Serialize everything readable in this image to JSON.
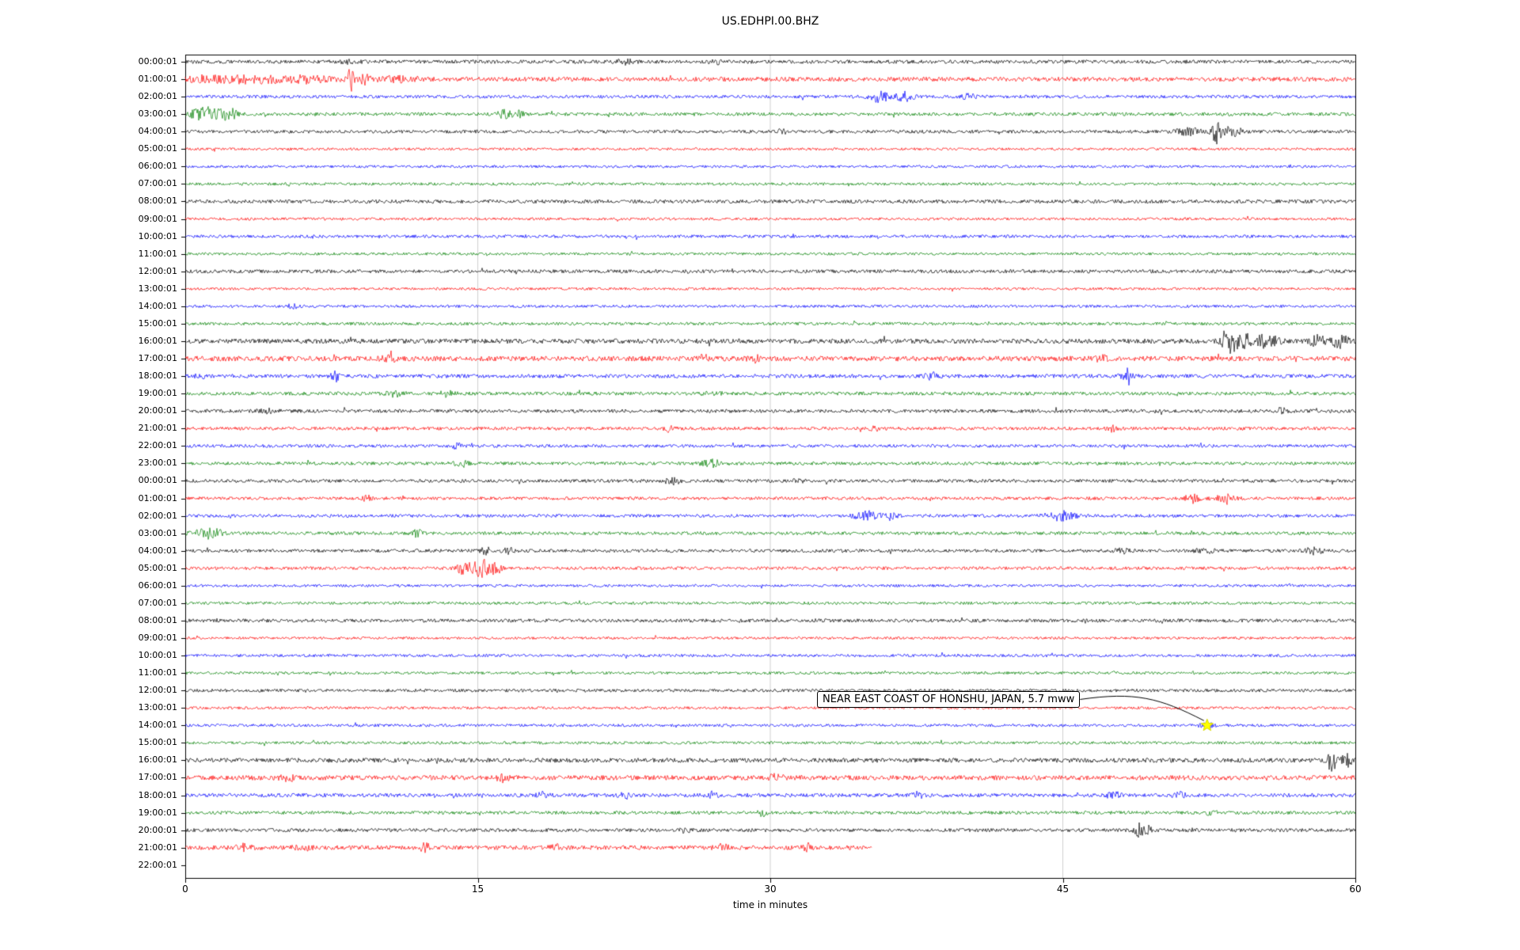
{
  "chart_data": {
    "type": "line",
    "subtype": "seismogram-helicorder-dayplot",
    "title": "US.EDHPI.00.BHZ",
    "xlabel": "time in minutes",
    "xlim": [
      0,
      60
    ],
    "xticks": [
      0,
      15,
      30,
      45,
      60
    ],
    "grid": "vertical gridlines at x ticks",
    "legend": "none",
    "row_interval": "1 hour per row",
    "trace_color_cycle": [
      "#000000",
      "#ff0000",
      "#0000ff",
      "#008000"
    ],
    "annotation": {
      "text": "NEAR EAST COAST OF HONSHU, JAPAN, 5.7 mww",
      "row_index": 38,
      "row_label": "14:00:01",
      "minute": 52.4,
      "marker_symbol": "star",
      "marker_color": "#ffff00"
    },
    "rows": [
      {
        "label": "00:00:01",
        "color": "#000000",
        "amp": 2.3,
        "end": 60,
        "events": [
          {
            "m": 8.3,
            "a": 1.5,
            "w": 0.4
          },
          {
            "m": 22.6,
            "a": 2.5,
            "w": 0.3
          },
          {
            "m": 27.2,
            "a": 2.0,
            "w": 0.3
          }
        ]
      },
      {
        "label": "01:00:01",
        "color": "#ff0000",
        "amp": 2.8,
        "end": 60,
        "events": [
          {
            "m": 1.5,
            "a": 2.5,
            "w": 1.5
          },
          {
            "m": 4.0,
            "a": 3.0,
            "w": 1.2
          },
          {
            "m": 6.5,
            "a": 3.5,
            "w": 0.8
          },
          {
            "m": 8.5,
            "a": 14.0,
            "w": 0.12
          },
          {
            "m": 9.2,
            "a": 6.0,
            "w": 0.2
          },
          {
            "m": 11.0,
            "a": 2.5,
            "w": 0.8
          }
        ]
      },
      {
        "label": "02:00:01",
        "color": "#0000ff",
        "amp": 2.0,
        "end": 60,
        "events": [
          {
            "m": 35.6,
            "a": 7.0,
            "w": 0.35
          },
          {
            "m": 36.9,
            "a": 6.0,
            "w": 0.3
          },
          {
            "m": 40.2,
            "a": 3.0,
            "w": 0.3
          }
        ]
      },
      {
        "label": "03:00:01",
        "color": "#008000",
        "amp": 2.1,
        "end": 60,
        "events": [
          {
            "m": 0.7,
            "a": 7.0,
            "w": 0.3
          },
          {
            "m": 1.4,
            "a": 8.0,
            "w": 0.4
          },
          {
            "m": 2.3,
            "a": 6.0,
            "w": 0.3
          },
          {
            "m": 16.4,
            "a": 5.0,
            "w": 0.25
          },
          {
            "m": 17.1,
            "a": 3.5,
            "w": 0.2
          }
        ]
      },
      {
        "label": "04:00:01",
        "color": "#000000",
        "amp": 2.1,
        "end": 60,
        "events": [
          {
            "m": 30.6,
            "a": 4.0,
            "w": 0.12
          },
          {
            "m": 51.6,
            "a": 4.5,
            "w": 0.5
          },
          {
            "m": 52.9,
            "a": 14.0,
            "w": 0.18
          },
          {
            "m": 53.7,
            "a": 6.0,
            "w": 0.35
          }
        ]
      },
      {
        "label": "05:00:01",
        "color": "#ff0000",
        "amp": 1.7,
        "end": 60,
        "events": []
      },
      {
        "label": "06:00:01",
        "color": "#0000ff",
        "amp": 1.7,
        "end": 60,
        "events": []
      },
      {
        "label": "07:00:01",
        "color": "#008000",
        "amp": 1.8,
        "end": 60,
        "events": []
      },
      {
        "label": "08:00:01",
        "color": "#000000",
        "amp": 2.3,
        "end": 60,
        "events": []
      },
      {
        "label": "09:00:01",
        "color": "#ff0000",
        "amp": 1.7,
        "end": 60,
        "events": []
      },
      {
        "label": "10:00:01",
        "color": "#0000ff",
        "amp": 1.9,
        "end": 60,
        "events": []
      },
      {
        "label": "11:00:01",
        "color": "#008000",
        "amp": 1.7,
        "end": 60,
        "events": []
      },
      {
        "label": "12:00:01",
        "color": "#000000",
        "amp": 2.2,
        "end": 60,
        "events": []
      },
      {
        "label": "13:00:01",
        "color": "#ff0000",
        "amp": 1.7,
        "end": 60,
        "events": []
      },
      {
        "label": "14:00:01",
        "color": "#0000ff",
        "amp": 1.8,
        "end": 60,
        "events": [
          {
            "m": 5.5,
            "a": 2.5,
            "w": 0.2
          }
        ]
      },
      {
        "label": "15:00:01",
        "color": "#008000",
        "amp": 1.9,
        "end": 60,
        "events": []
      },
      {
        "label": "16:00:01",
        "color": "#000000",
        "amp": 3.0,
        "end": 60,
        "events": [
          {
            "m": 53.6,
            "a": 13.0,
            "w": 0.3
          },
          {
            "m": 54.6,
            "a": 8.0,
            "w": 0.5
          },
          {
            "m": 55.6,
            "a": 5.0,
            "w": 0.4
          },
          {
            "m": 58.1,
            "a": 6.0,
            "w": 0.3
          },
          {
            "m": 59.2,
            "a": 7.0,
            "w": 0.3
          }
        ]
      },
      {
        "label": "17:00:01",
        "color": "#ff0000",
        "amp": 3.2,
        "end": 60,
        "events": [
          {
            "m": 10.5,
            "a": 2.5,
            "w": 0.3
          },
          {
            "m": 26.5,
            "a": 5.0,
            "w": 0.2
          },
          {
            "m": 29.2,
            "a": 3.5,
            "w": 0.2
          },
          {
            "m": 47.0,
            "a": 2.5,
            "w": 0.3
          }
        ]
      },
      {
        "label": "18:00:01",
        "color": "#0000ff",
        "amp": 2.4,
        "end": 60,
        "events": [
          {
            "m": 0.8,
            "a": 5.0,
            "w": 0.15
          },
          {
            "m": 7.7,
            "a": 6.0,
            "w": 0.15
          },
          {
            "m": 38.3,
            "a": 3.5,
            "w": 0.25
          },
          {
            "m": 48.3,
            "a": 3.5,
            "w": 0.25
          }
        ]
      },
      {
        "label": "19:00:01",
        "color": "#008000",
        "amp": 2.2,
        "end": 60,
        "events": [
          {
            "m": 10.8,
            "a": 4.0,
            "w": 0.3
          },
          {
            "m": 13.4,
            "a": 3.5,
            "w": 0.25
          },
          {
            "m": 27.0,
            "a": 3.0,
            "w": 0.3
          }
        ]
      },
      {
        "label": "20:00:01",
        "color": "#000000",
        "amp": 2.2,
        "end": 60,
        "events": [
          {
            "m": 4.2,
            "a": 3.0,
            "w": 0.3
          },
          {
            "m": 56.2,
            "a": 3.0,
            "w": 0.3
          }
        ]
      },
      {
        "label": "21:00:01",
        "color": "#ff0000",
        "amp": 2.1,
        "end": 60,
        "events": [
          {
            "m": 24.8,
            "a": 3.5,
            "w": 0.2
          },
          {
            "m": 35.4,
            "a": 3.5,
            "w": 0.2
          },
          {
            "m": 47.6,
            "a": 4.0,
            "w": 0.2
          }
        ]
      },
      {
        "label": "22:00:01",
        "color": "#0000ff",
        "amp": 2.0,
        "end": 60,
        "events": [
          {
            "m": 13.9,
            "a": 4.5,
            "w": 0.15
          }
        ]
      },
      {
        "label": "23:00:01",
        "color": "#008000",
        "amp": 2.1,
        "end": 60,
        "events": [
          {
            "m": 14.2,
            "a": 3.5,
            "w": 0.3
          },
          {
            "m": 27.0,
            "a": 4.0,
            "w": 0.35
          }
        ]
      },
      {
        "label": "00:00:01",
        "color": "#000000",
        "amp": 2.1,
        "end": 60,
        "events": [
          {
            "m": 25.0,
            "a": 3.5,
            "w": 0.3
          },
          {
            "m": 31.4,
            "a": 3.0,
            "w": 0.25
          }
        ]
      },
      {
        "label": "01:00:01",
        "color": "#ff0000",
        "amp": 2.0,
        "end": 60,
        "events": [
          {
            "m": 9.3,
            "a": 3.0,
            "w": 0.2
          },
          {
            "m": 51.8,
            "a": 6.0,
            "w": 0.35
          },
          {
            "m": 53.3,
            "a": 7.0,
            "w": 0.3
          }
        ]
      },
      {
        "label": "02:00:01",
        "color": "#0000ff",
        "amp": 2.0,
        "end": 60,
        "events": [
          {
            "m": 34.9,
            "a": 6.0,
            "w": 0.4
          },
          {
            "m": 36.1,
            "a": 5.0,
            "w": 0.3
          },
          {
            "m": 44.9,
            "a": 6.0,
            "w": 0.5
          }
        ]
      },
      {
        "label": "03:00:01",
        "color": "#008000",
        "amp": 2.1,
        "end": 60,
        "events": [
          {
            "m": 1.2,
            "a": 6.0,
            "w": 0.5
          },
          {
            "m": 11.9,
            "a": 4.0,
            "w": 0.2
          }
        ]
      },
      {
        "label": "04:00:01",
        "color": "#000000",
        "amp": 2.1,
        "end": 60,
        "events": [
          {
            "m": 15.4,
            "a": 5.0,
            "w": 0.15
          },
          {
            "m": 16.6,
            "a": 3.0,
            "w": 0.2
          },
          {
            "m": 48.0,
            "a": 3.0,
            "w": 0.25
          },
          {
            "m": 52.3,
            "a": 3.5,
            "w": 0.3
          },
          {
            "m": 57.9,
            "a": 4.0,
            "w": 0.3
          }
        ]
      },
      {
        "label": "05:00:01",
        "color": "#ff0000",
        "amp": 2.0,
        "end": 60,
        "events": [
          {
            "m": 14.3,
            "a": 8.0,
            "w": 0.3
          },
          {
            "m": 15.2,
            "a": 13.0,
            "w": 0.25
          },
          {
            "m": 15.9,
            "a": 8.0,
            "w": 0.2
          }
        ]
      },
      {
        "label": "06:00:01",
        "color": "#0000ff",
        "amp": 1.7,
        "end": 60,
        "events": []
      },
      {
        "label": "07:00:01",
        "color": "#008000",
        "amp": 1.8,
        "end": 60,
        "events": []
      },
      {
        "label": "08:00:01",
        "color": "#000000",
        "amp": 2.2,
        "end": 60,
        "events": []
      },
      {
        "label": "09:00:01",
        "color": "#ff0000",
        "amp": 1.6,
        "end": 60,
        "events": []
      },
      {
        "label": "10:00:01",
        "color": "#0000ff",
        "amp": 1.8,
        "end": 60,
        "events": []
      },
      {
        "label": "11:00:01",
        "color": "#008000",
        "amp": 1.7,
        "end": 60,
        "events": []
      },
      {
        "label": "12:00:01",
        "color": "#000000",
        "amp": 2.0,
        "end": 60,
        "events": []
      },
      {
        "label": "13:00:01",
        "color": "#ff0000",
        "amp": 1.7,
        "end": 60,
        "events": []
      },
      {
        "label": "14:00:01",
        "color": "#0000ff",
        "amp": 1.8,
        "end": 60,
        "events": [
          {
            "m": 52.4,
            "a": 2.5,
            "w": 0.3
          }
        ]
      },
      {
        "label": "15:00:01",
        "color": "#008000",
        "amp": 1.8,
        "end": 60,
        "events": []
      },
      {
        "label": "16:00:01",
        "color": "#000000",
        "amp": 2.8,
        "end": 60,
        "events": [
          {
            "m": 58.8,
            "a": 12.0,
            "w": 0.2
          },
          {
            "m": 59.5,
            "a": 8.0,
            "w": 0.2
          }
        ]
      },
      {
        "label": "17:00:01",
        "color": "#ff0000",
        "amp": 3.0,
        "end": 60,
        "events": [
          {
            "m": 5.2,
            "a": 3.5,
            "w": 0.3
          },
          {
            "m": 16.3,
            "a": 5.0,
            "w": 0.2
          },
          {
            "m": 30.3,
            "a": 5.0,
            "w": 0.2
          }
        ]
      },
      {
        "label": "18:00:01",
        "color": "#0000ff",
        "amp": 2.4,
        "end": 60,
        "events": [
          {
            "m": 18.4,
            "a": 5.0,
            "w": 0.2
          },
          {
            "m": 22.6,
            "a": 3.5,
            "w": 0.2
          },
          {
            "m": 27.0,
            "a": 3.5,
            "w": 0.2
          },
          {
            "m": 37.6,
            "a": 3.5,
            "w": 0.2
          },
          {
            "m": 47.6,
            "a": 3.5,
            "w": 0.25
          },
          {
            "m": 51.0,
            "a": 3.5,
            "w": 0.2
          }
        ]
      },
      {
        "label": "19:00:01",
        "color": "#008000",
        "amp": 2.1,
        "end": 60,
        "events": [
          {
            "m": 29.6,
            "a": 4.5,
            "w": 0.15
          },
          {
            "m": 52.6,
            "a": 3.5,
            "w": 0.2
          }
        ]
      },
      {
        "label": "20:00:01",
        "color": "#000000",
        "amp": 2.2,
        "end": 60,
        "events": [
          {
            "m": 25.6,
            "a": 3.5,
            "w": 0.2
          },
          {
            "m": 48.9,
            "a": 9.0,
            "w": 0.15
          },
          {
            "m": 49.4,
            "a": 4.5,
            "w": 0.15
          }
        ]
      },
      {
        "label": "21:00:01",
        "color": "#ff0000",
        "amp": 2.8,
        "end": 35.2,
        "events": [
          {
            "m": 3.0,
            "a": 3.5,
            "w": 0.3
          },
          {
            "m": 6.0,
            "a": 3.5,
            "w": 0.3
          },
          {
            "m": 12.3,
            "a": 4.5,
            "w": 0.2
          },
          {
            "m": 19.0,
            "a": 3.5,
            "w": 0.2
          },
          {
            "m": 27.5,
            "a": 3.5,
            "w": 0.25
          },
          {
            "m": 32.0,
            "a": 4.0,
            "w": 0.2
          }
        ]
      },
      {
        "label": "22:00:01",
        "color": "#0000ff",
        "amp": 0,
        "end": 0,
        "events": []
      }
    ]
  }
}
